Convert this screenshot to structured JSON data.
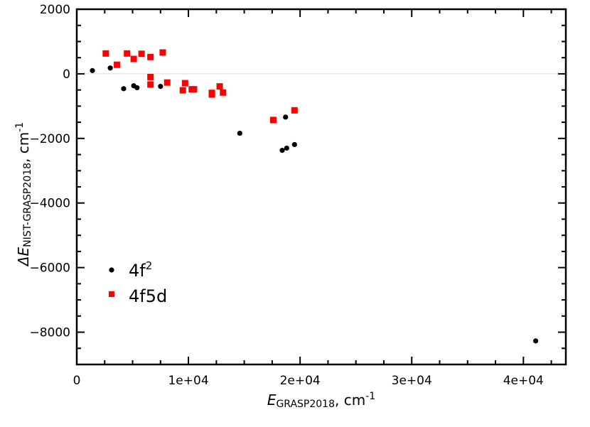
{
  "chart_data": {
    "type": "scatter",
    "xlabel": {
      "main": "E",
      "sub": "GRASP2018",
      "unit": ", cm",
      "sup": "-1"
    },
    "ylabel": {
      "prefix": "ΔE",
      "sub": "NIST-GRASP2018",
      "unit": ", cm",
      "sup": "-1"
    },
    "xlim": [
      0,
      43800
    ],
    "ylim": [
      -9000,
      2000
    ],
    "x_ticks": [
      0,
      10000,
      20000,
      30000,
      40000
    ],
    "x_tick_labels": [
      "0",
      "1e+04",
      "2e+04",
      "3e+04",
      "4e+04"
    ],
    "y_ticks": [
      2000,
      0,
      -2000,
      -4000,
      -6000,
      -8000
    ],
    "y_tick_labels": [
      "2000",
      "0",
      "−2000",
      "−4000",
      "−6000",
      "−8000"
    ],
    "zero_line": true,
    "grid": false,
    "legend_position": "lower-left",
    "series": [
      {
        "name": "4f2",
        "name_main": "4f",
        "name_sup": "2",
        "marker": "circle",
        "color": "#000000",
        "points": [
          [
            1400,
            100
          ],
          [
            3000,
            180
          ],
          [
            4200,
            -460
          ],
          [
            5100,
            -370
          ],
          [
            5400,
            -430
          ],
          [
            7500,
            -390
          ],
          [
            14600,
            -1840
          ],
          [
            18400,
            -2370
          ],
          [
            18700,
            -1340
          ],
          [
            18800,
            -2300
          ],
          [
            19500,
            -2190
          ],
          [
            41100,
            -8270
          ]
        ]
      },
      {
        "name": "4f5d",
        "name_main": "4f5d",
        "name_sup": "",
        "marker": "square",
        "color": "#ff0000",
        "points": [
          [
            2600,
            630
          ],
          [
            3600,
            280
          ],
          [
            4500,
            630
          ],
          [
            5100,
            460
          ],
          [
            5800,
            620
          ],
          [
            6600,
            520
          ],
          [
            6600,
            -100
          ],
          [
            6600,
            -330
          ],
          [
            7700,
            660
          ],
          [
            8100,
            -270
          ],
          [
            9500,
            -510
          ],
          [
            9700,
            -290
          ],
          [
            10300,
            -480
          ],
          [
            10500,
            -480
          ],
          [
            12100,
            -590
          ],
          [
            12100,
            -640
          ],
          [
            12800,
            -390
          ],
          [
            13100,
            -580
          ],
          [
            17600,
            -1430
          ],
          [
            19500,
            -1130
          ]
        ]
      }
    ]
  }
}
